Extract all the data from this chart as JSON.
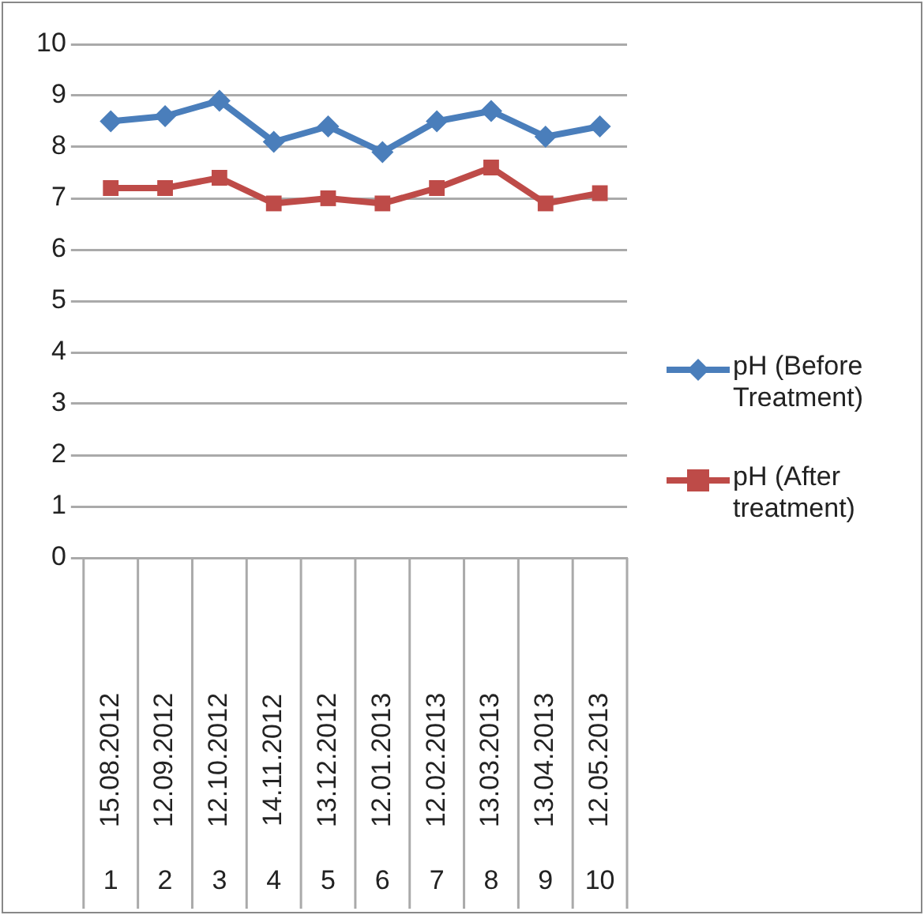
{
  "chart_data": {
    "type": "line",
    "categories": [
      "15.08.2012\n1",
      "12.09.2012\n2",
      "12.10.2012\n3",
      "14.11.2012\n4",
      "13.12.2012\n5",
      "12.01.2013\n6",
      "12.02.2013\n7",
      "13.03.2013\n8",
      "13.04.2013\n9",
      "12.05.2013\n10"
    ],
    "series": [
      {
        "name": "pH (Before Treatment)",
        "color": "#4a7ebb",
        "marker": "diamond",
        "values": [
          8.5,
          8.6,
          8.9,
          8.1,
          8.4,
          7.9,
          8.5,
          8.7,
          8.2,
          8.4
        ]
      },
      {
        "name": "pH (After treatment)",
        "color": "#be4b48",
        "marker": "square",
        "values": [
          7.2,
          7.2,
          7.4,
          6.9,
          7.0,
          6.9,
          7.2,
          7.6,
          6.9,
          7.1
        ]
      }
    ],
    "ylim": [
      0,
      10
    ],
    "yticks": [
      0,
      1,
      2,
      3,
      4,
      5,
      6,
      7,
      8,
      9,
      10
    ],
    "grid": "y",
    "legend": "right"
  }
}
